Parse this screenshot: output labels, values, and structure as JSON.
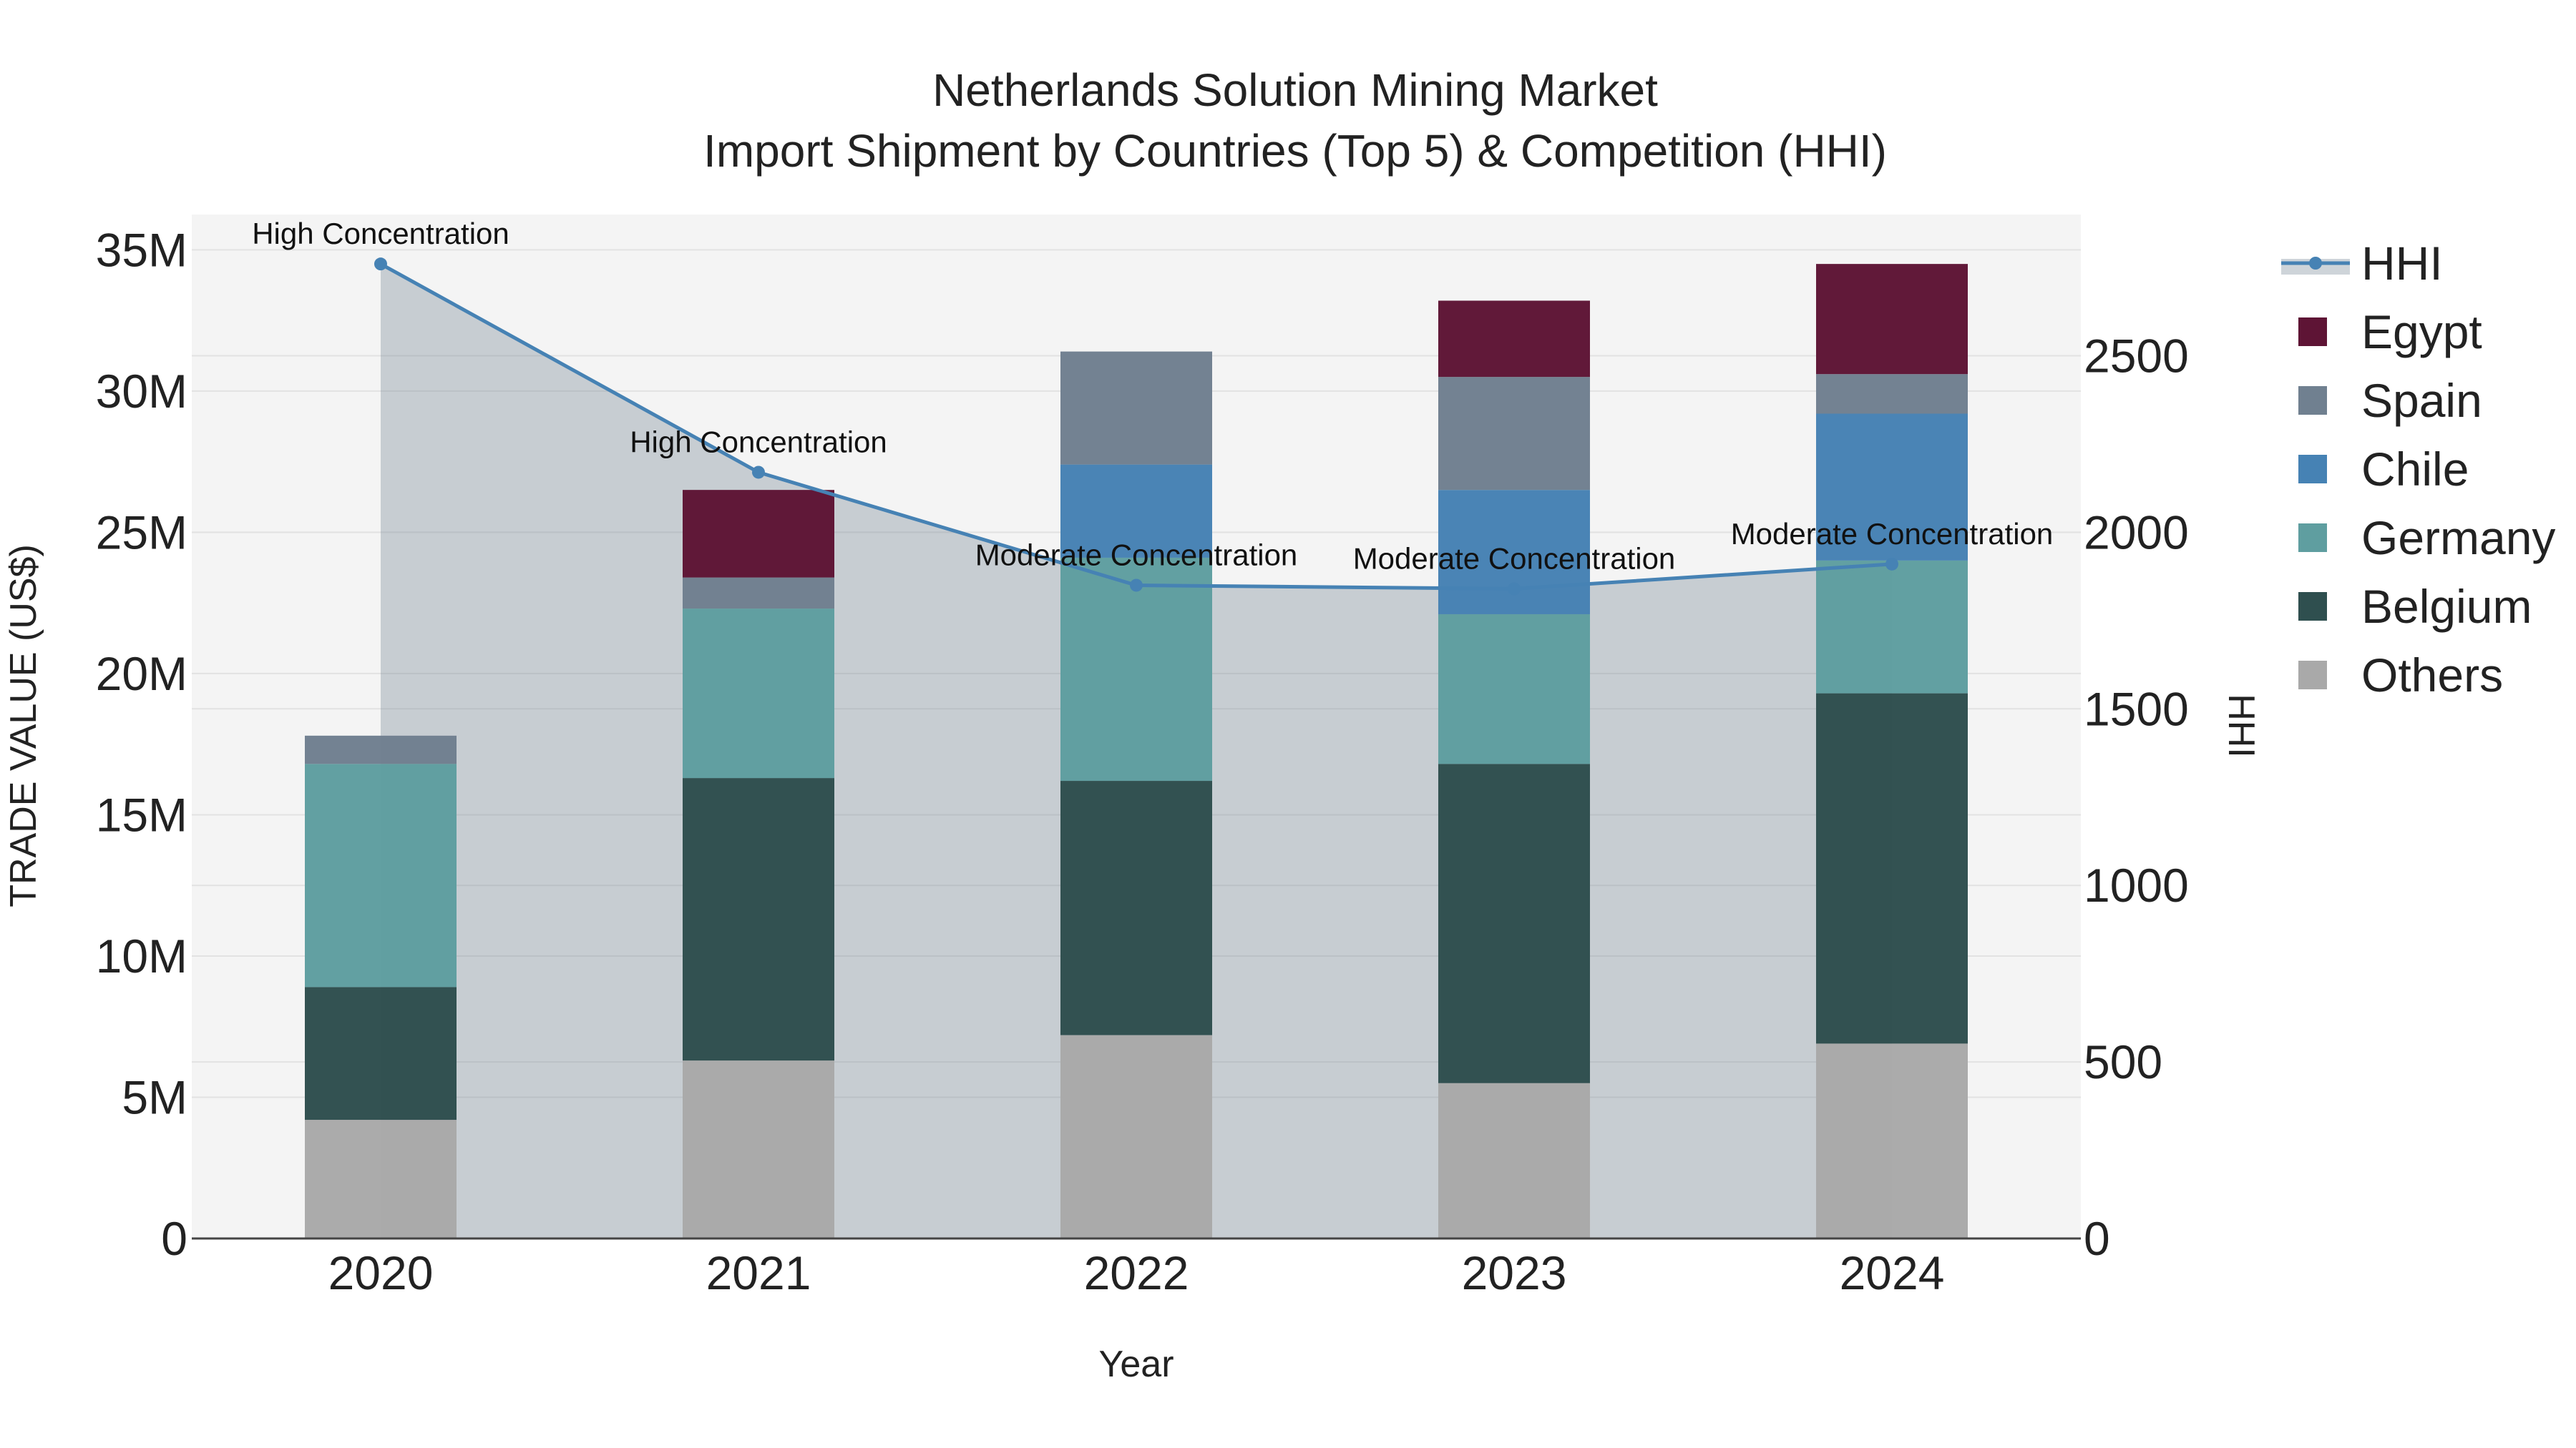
{
  "chart_data": {
    "type": "bar",
    "title": "Netherlands Solution Mining Market",
    "subtitle": "Import Shipment by Countries (Top 5) & Competition (HHI)",
    "xlabel": "Year",
    "ylabel": "TRADE VALUE (US$)",
    "y2label": "HHI",
    "categories": [
      "2020",
      "2021",
      "2022",
      "2023",
      "2024"
    ],
    "ylim": [
      0,
      36250000
    ],
    "y2lim": [
      0,
      2900
    ],
    "y_ticks": [
      {
        "value": 0,
        "label": "0"
      },
      {
        "value": 5000000,
        "label": "5M"
      },
      {
        "value": 10000000,
        "label": "10M"
      },
      {
        "value": 15000000,
        "label": "15M"
      },
      {
        "value": 20000000,
        "label": "20M"
      },
      {
        "value": 25000000,
        "label": "25M"
      },
      {
        "value": 30000000,
        "label": "30M"
      },
      {
        "value": 35000000,
        "label": "35M"
      }
    ],
    "y2_ticks": [
      {
        "value": 0,
        "label": "0"
      },
      {
        "value": 500,
        "label": "500"
      },
      {
        "value": 1000,
        "label": "1000"
      },
      {
        "value": 1500,
        "label": "1500"
      },
      {
        "value": 2000,
        "label": "2000"
      },
      {
        "value": 2500,
        "label": "2500"
      }
    ],
    "series": [
      {
        "name": "Others",
        "color": "#a9a9a9",
        "values": [
          4200000,
          6300000,
          7200000,
          5500000,
          6900000
        ]
      },
      {
        "name": "Belgium",
        "color": "#2f4f4f",
        "values": [
          4700000,
          10000000,
          9000000,
          11300000,
          12400000
        ]
      },
      {
        "name": "Germany",
        "color": "#5f9ea0",
        "values": [
          7900000,
          6000000,
          7900000,
          5300000,
          4700000
        ]
      },
      {
        "name": "Chile",
        "color": "#4682b4",
        "values": [
          0,
          0,
          3300000,
          4400000,
          5200000
        ]
      },
      {
        "name": "Spain",
        "color": "#708090",
        "values": [
          1000000,
          1100000,
          4000000,
          4000000,
          1400000
        ]
      },
      {
        "name": "Egypt",
        "color": "#5e1435",
        "values": [
          0,
          3100000,
          0,
          2700000,
          3900000
        ]
      }
    ],
    "hhi": {
      "name": "HHI",
      "color": "#4682b4",
      "fill": "rgba(112,128,144,0.34)",
      "values": [
        2760,
        2170,
        1850,
        1840,
        1910
      ],
      "annotations": [
        "High Concentration",
        "High Concentration",
        "Moderate Concentration",
        "Moderate Concentration",
        "Moderate Concentration"
      ]
    },
    "legend": [
      "HHI",
      "Egypt",
      "Spain",
      "Chile",
      "Germany",
      "Belgium",
      "Others"
    ],
    "legend_position": "right",
    "grid": true
  }
}
